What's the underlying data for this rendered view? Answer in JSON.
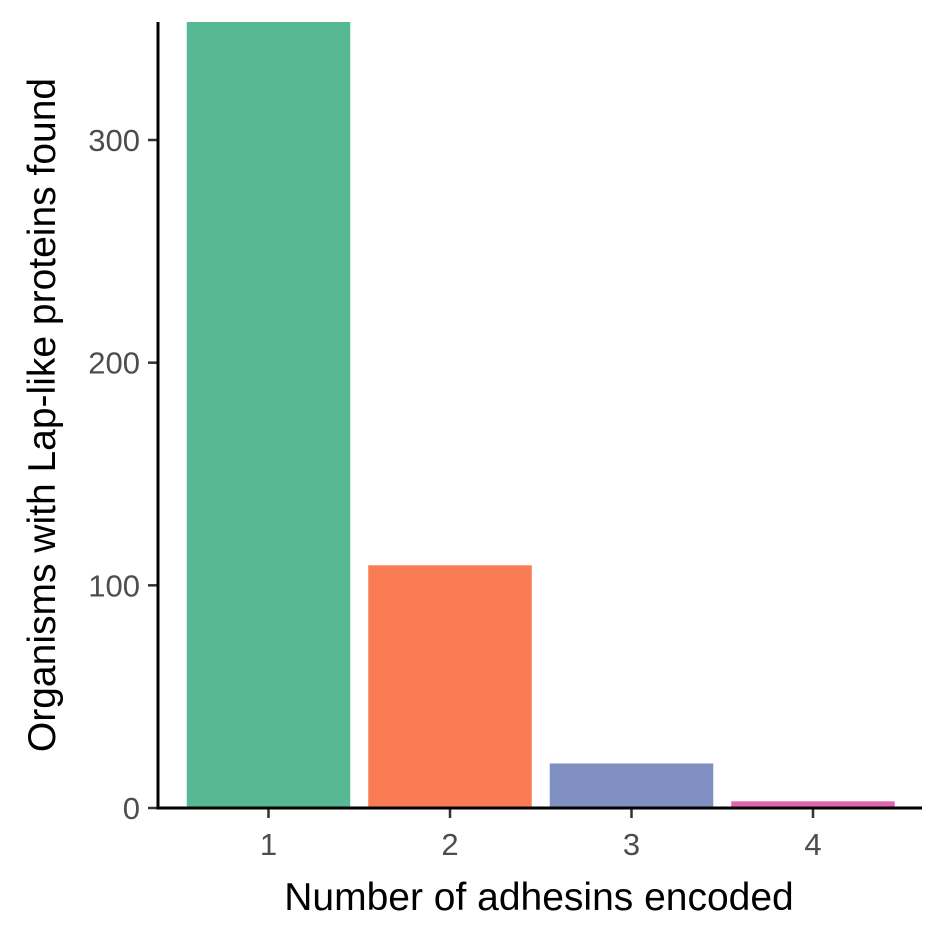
{
  "chart_data": {
    "type": "bar",
    "categories": [
      "1",
      "2",
      "3",
      "4"
    ],
    "values": [
      353,
      109,
      20,
      3
    ],
    "colors": [
      "#57b994",
      "#fa7c54",
      "#7f8fc0",
      "#de66b0"
    ],
    "xlabel": "Number of adhesins encoded",
    "ylabel": "Organisms with Lap-like proteins found",
    "ylim": [
      0,
      353
    ],
    "yticks": [
      0,
      100,
      200,
      300
    ],
    "grid": false,
    "legend": "none"
  }
}
